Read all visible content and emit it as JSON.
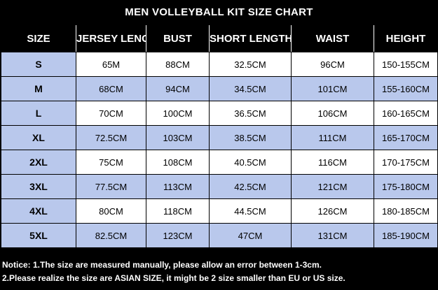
{
  "title": "MEN VOLLEYBALL KIT SIZE CHART",
  "headers": [
    "SIZE",
    "JERSEY LENGTH",
    "BUST",
    "SHORT LENGTH",
    "WAIST",
    "HEIGHT"
  ],
  "rows": [
    [
      "S",
      "65M",
      "88CM",
      "32.5CM",
      "96CM",
      "150-155CM"
    ],
    [
      "M",
      "68CM",
      "94CM",
      "34.5CM",
      "101CM",
      "155-160CM"
    ],
    [
      "L",
      "70CM",
      "100CM",
      "36.5CM",
      "106CM",
      "160-165CM"
    ],
    [
      "XL",
      "72.5CM",
      "103CM",
      "38.5CM",
      "111CM",
      "165-170CM"
    ],
    [
      "2XL",
      "75CM",
      "108CM",
      "40.5CM",
      "116CM",
      "170-175CM"
    ],
    [
      "3XL",
      "77.5CM",
      "113CM",
      "42.5CM",
      "121CM",
      "175-180CM"
    ],
    [
      "4XL",
      "80CM",
      "118CM",
      "44.5CM",
      "126CM",
      "180-185CM"
    ],
    [
      "5XL",
      "82.5CM",
      "123CM",
      "47CM",
      "131CM",
      "185-190CM"
    ]
  ],
  "notice": {
    "line1": "Notice: 1.The size are measured manually, please allow an error between 1-3cm.",
    "line2": "2.Please realize the size are ASIAN SIZE, it might be 2 size smaller than EU or US size."
  },
  "colors": {
    "background": "#000000",
    "header_text": "#ffffff",
    "stripe": "#b9c8ec",
    "cell": "#ffffff"
  }
}
